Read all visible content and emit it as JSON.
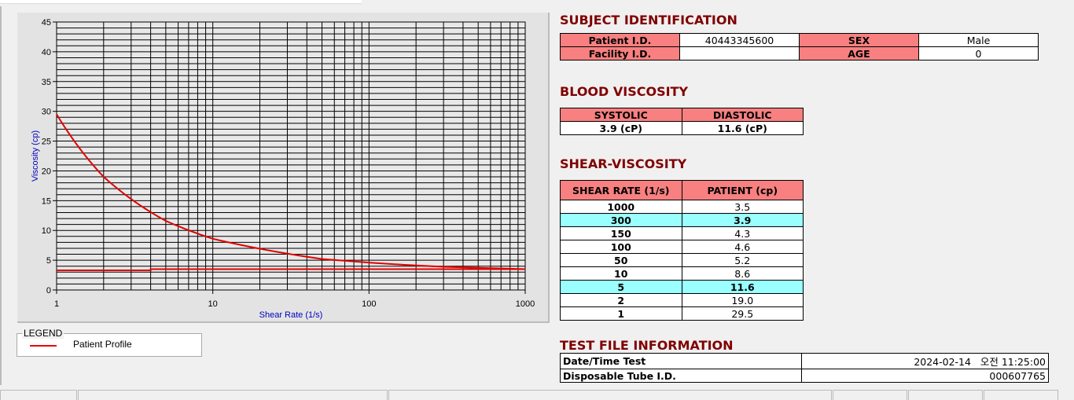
{
  "chart_data": {
    "type": "line",
    "xlabel": "Shear Rate (1/s)",
    "ylabel": "Viscosity (cp)",
    "x_scale": "log",
    "xlim": [
      1,
      1000
    ],
    "ylim": [
      0,
      45
    ],
    "grid": true,
    "x_ticks": [
      "1",
      "10",
      "100",
      "1000"
    ],
    "y_ticks": [
      "0",
      "5",
      "10",
      "15",
      "20",
      "25",
      "30",
      "35",
      "40",
      "45"
    ],
    "series": [
      {
        "name": "Patient Profile",
        "color": "#e00000",
        "x": [
          1,
          2,
          5,
          10,
          50,
          100,
          150,
          300,
          1000
        ],
        "y": [
          29.5,
          19.0,
          11.6,
          8.6,
          5.2,
          4.6,
          4.3,
          3.9,
          3.5
        ]
      },
      {
        "color": "#e00000",
        "x": [
          1,
          4,
          4,
          1000
        ],
        "y": [
          3.3,
          3.3,
          3.5,
          3.5
        ]
      }
    ],
    "legend": {
      "title": "LEGEND",
      "position": "bottom-left"
    }
  },
  "subject": {
    "title": "SUBJECT IDENTIFICATION",
    "patient_id_label": "Patient I.D.",
    "patient_id": "40443345600",
    "sex_label": "SEX",
    "sex": "Male",
    "facility_label": "Facility I.D.",
    "facility": "",
    "age_label": "AGE",
    "age": "0"
  },
  "blood": {
    "title": "BLOOD VISCOSITY",
    "systolic_label": "SYSTOLIC",
    "diastolic_label": "DIASTOLIC",
    "systolic": "3.9 (cP)",
    "diastolic": "11.6 (cP)"
  },
  "shear": {
    "title": "SHEAR-VISCOSITY",
    "col1": "SHEAR RATE (1/s)",
    "col2": "PATIENT (cp)",
    "highlight_color": "#99ffff",
    "rows": [
      {
        "rate": "1000",
        "val": "3.5"
      },
      {
        "rate": "300",
        "val": "3.9",
        "hl": true
      },
      {
        "rate": "150",
        "val": "4.3"
      },
      {
        "rate": "100",
        "val": "4.6"
      },
      {
        "rate": "50",
        "val": "5.2"
      },
      {
        "rate": "10",
        "val": "8.6"
      },
      {
        "rate": "5",
        "val": "11.6",
        "hl": true
      },
      {
        "rate": "2",
        "val": "19.0"
      },
      {
        "rate": "1",
        "val": "29.5"
      }
    ]
  },
  "testfile": {
    "title": "TEST FILE INFORMATION",
    "date_label": "Date/Time Test",
    "date": "2024-02-14   오전 11:25:00",
    "tube_label": "Disposable Tube I.D.",
    "tube": "000607765"
  }
}
